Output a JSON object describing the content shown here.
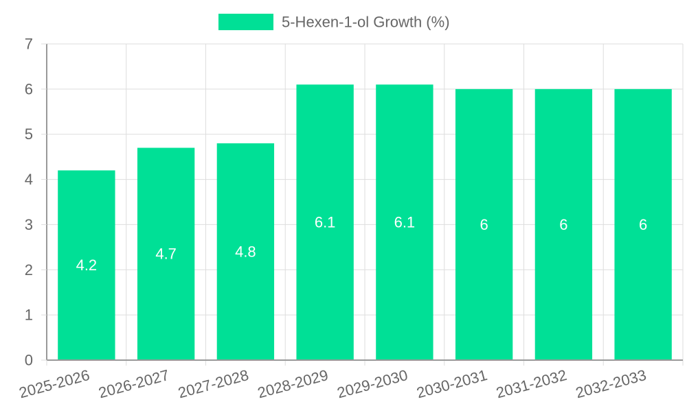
{
  "legend": {
    "label": "5-Hexen-1-ol Growth (%)"
  },
  "colors": {
    "bar": "#00e096",
    "grid": "#dddddd",
    "axis": "#999999",
    "tick_text": "#666666",
    "data_label": "#ffffff"
  },
  "chart_data": {
    "type": "bar",
    "title": "",
    "xlabel": "",
    "ylabel": "",
    "categories": [
      "2025-2026",
      "2026-2027",
      "2027-2028",
      "2028-2029",
      "2029-2030",
      "2030-2031",
      "2031-2032",
      "2032-2033"
    ],
    "series": [
      {
        "name": "5-Hexen-1-ol Growth (%)",
        "values": [
          4.2,
          4.7,
          4.8,
          6.1,
          6.1,
          6,
          6,
          6
        ]
      }
    ],
    "data_labels": [
      "4.2",
      "4.7",
      "4.8",
      "6.1",
      "6.1",
      "6",
      "6",
      "6"
    ],
    "ylim": [
      0,
      7
    ],
    "yticks": [
      "0",
      "1",
      "2",
      "3",
      "4",
      "5",
      "6",
      "7"
    ],
    "grid": true,
    "legend_position": "top-center"
  }
}
